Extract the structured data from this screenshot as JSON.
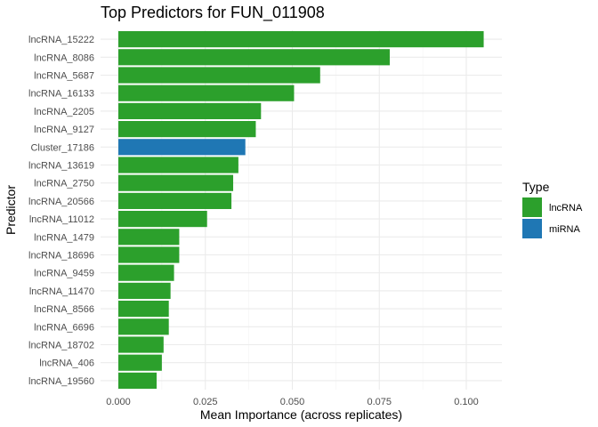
{
  "chart_data": {
    "type": "bar",
    "orientation": "horizontal",
    "title": "Top Predictors for FUN_011908",
    "xlabel": "Mean Importance (across replicates)",
    "ylabel": "Predictor",
    "xlim": [
      0,
      0.11
    ],
    "xticks": [
      0.0,
      0.025,
      0.05,
      0.075,
      0.1
    ],
    "xtick_labels": [
      "0.000",
      "0.025",
      "0.050",
      "0.075",
      "0.100"
    ],
    "grid": true,
    "legend_position": "right",
    "legend": {
      "title": "Type",
      "items": [
        {
          "name": "lncRNA",
          "color": "#2ca02c"
        },
        {
          "name": "miRNA",
          "color": "#1f77b4"
        }
      ]
    },
    "categories": [
      "lncRNA_15222",
      "lncRNA_8086",
      "lncRNA_5687",
      "lncRNA_16133",
      "lncRNA_2205",
      "lncRNA_9127",
      "Cluster_17186",
      "lncRNA_13619",
      "lncRNA_2750",
      "lncRNA_20566",
      "lncRNA_11012",
      "lncRNA_1479",
      "lncRNA_18696",
      "lncRNA_9459",
      "lncRNA_11470",
      "lncRNA_8566",
      "lncRNA_6696",
      "lncRNA_18702",
      "lncRNA_406",
      "lncRNA_19560"
    ],
    "values": [
      0.105,
      0.078,
      0.058,
      0.0505,
      0.041,
      0.0395,
      0.0365,
      0.0345,
      0.033,
      0.0325,
      0.0255,
      0.0175,
      0.0175,
      0.016,
      0.015,
      0.0145,
      0.0145,
      0.013,
      0.0125,
      0.011
    ],
    "types": [
      "lncRNA",
      "lncRNA",
      "lncRNA",
      "lncRNA",
      "lncRNA",
      "lncRNA",
      "miRNA",
      "lncRNA",
      "lncRNA",
      "lncRNA",
      "lncRNA",
      "lncRNA",
      "lncRNA",
      "lncRNA",
      "lncRNA",
      "lncRNA",
      "lncRNA",
      "lncRNA",
      "lncRNA",
      "lncRNA"
    ]
  }
}
